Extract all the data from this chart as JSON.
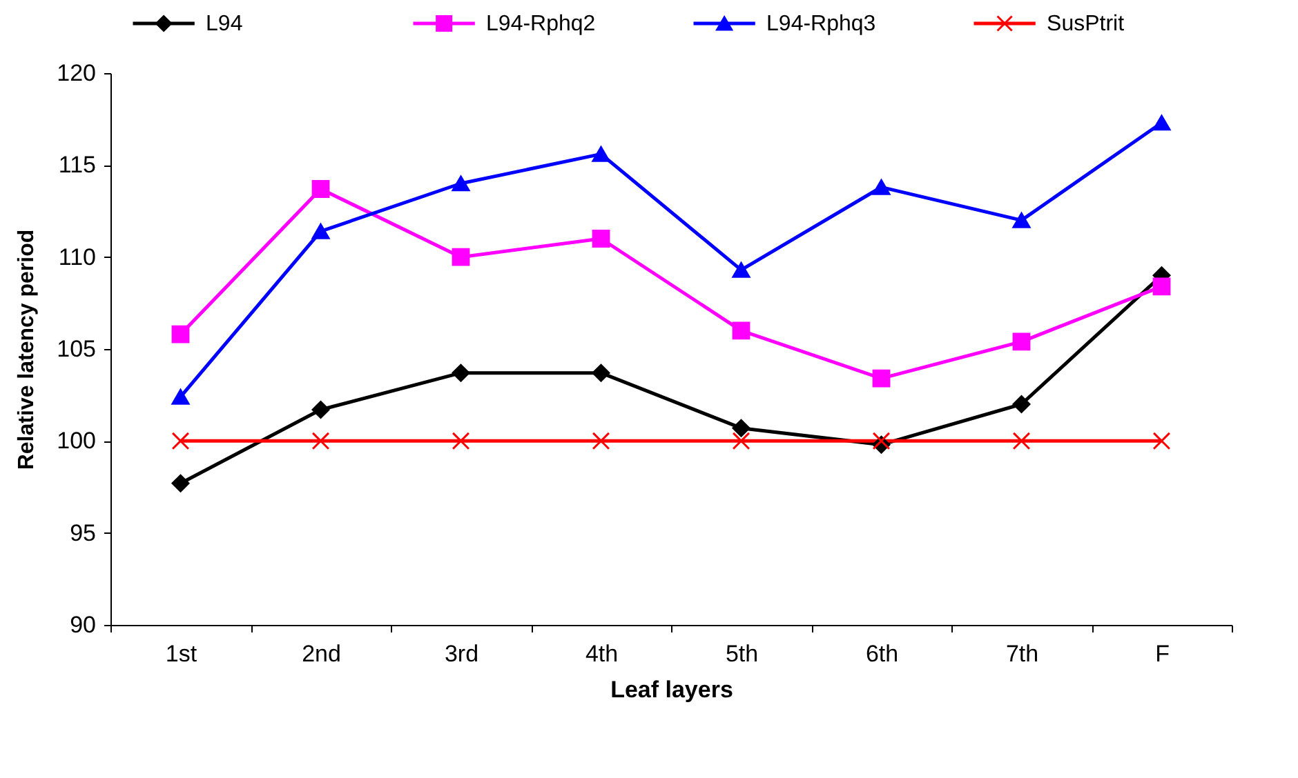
{
  "chart_data": {
    "type": "line",
    "xlabel": "Leaf layers",
    "ylabel": "Relative latency period",
    "categories": [
      "1st",
      "2nd",
      "3rd",
      "4th",
      "5th",
      "6th",
      "7th",
      "F"
    ],
    "series": [
      {
        "name": "L94",
        "color": "#000000",
        "marker": "diamond",
        "values": [
          97.7,
          101.7,
          103.7,
          103.7,
          100.7,
          99.8,
          102.0,
          109.0
        ]
      },
      {
        "name": "L94-Rphq2",
        "color": "#ff00ff",
        "marker": "square",
        "values": [
          105.8,
          113.7,
          110.0,
          111.0,
          106.0,
          103.4,
          105.4,
          108.4
        ]
      },
      {
        "name": "L94-Rphq3",
        "color": "#0000ff",
        "marker": "triangle",
        "values": [
          102.4,
          111.4,
          114.0,
          115.6,
          109.3,
          113.8,
          112.0,
          117.3
        ]
      },
      {
        "name": "SusPtrit",
        "color": "#ff0000",
        "marker": "cross",
        "values": [
          100,
          100,
          100,
          100,
          100,
          100,
          100,
          100
        ]
      }
    ],
    "ylim": [
      90,
      120
    ],
    "yticks": [
      90,
      95,
      100,
      105,
      110,
      115,
      120
    ],
    "grid": false,
    "legend": "top",
    "line_style": "solid"
  }
}
